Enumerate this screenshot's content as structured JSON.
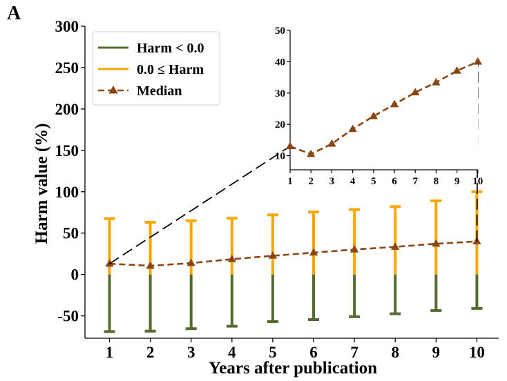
{
  "panel_label": "A",
  "colors": {
    "negative": "#556b2f",
    "positive": "#ffa500",
    "median": "#8b4513",
    "axis": "#000000"
  },
  "chart_data": [
    {
      "type": "errorbar",
      "xlabel": "Years after publication",
      "ylabel": "Harm value (%)",
      "x": [
        1,
        2,
        3,
        4,
        5,
        6,
        7,
        8,
        9,
        10
      ],
      "ylim": [
        -77,
        300
      ],
      "yticks": [
        300,
        250,
        200,
        150,
        100,
        50,
        0,
        -50
      ],
      "ytick_labels": [
        "300",
        "250",
        "200",
        "150",
        "100",
        "50",
        "0",
        "-50"
      ],
      "xtick_labels": [
        "1",
        "2",
        "3",
        "4",
        "5",
        "6",
        "7",
        "8",
        "9",
        "10"
      ],
      "series": [
        {
          "name": "Harm < 0.0",
          "kind": "errorbar-lower",
          "min_values": [
            -69,
            -68.5,
            -65.5,
            -62.5,
            -57,
            -54.5,
            -51,
            -47.5,
            -43.5,
            -41
          ]
        },
        {
          "name": "0.0 ≤ Harm",
          "kind": "errorbar-upper",
          "max_values": [
            67.5,
            63,
            65,
            68,
            72,
            75.5,
            78.5,
            82,
            89,
            100
          ]
        },
        {
          "name": "Median",
          "kind": "line-markers",
          "values": [
            13,
            10.5,
            13.8,
            18.5,
            22.6,
            26.4,
            30.2,
            33.4,
            37.1,
            40
          ]
        }
      ],
      "legend_position": "top-left",
      "grid": false
    },
    {
      "type": "line",
      "role": "inset",
      "x": [
        1,
        2,
        3,
        4,
        5,
        6,
        7,
        8,
        9,
        10
      ],
      "values": [
        13,
        10.5,
        13.8,
        18.5,
        22.6,
        26.4,
        30.2,
        33.4,
        37.1,
        40
      ],
      "ylim": [
        5.5,
        50
      ],
      "yticks": [
        50,
        40,
        30,
        20,
        10
      ],
      "ytick_labels": [
        "50",
        "40",
        "30",
        "20",
        "10"
      ],
      "xtick_labels": [
        "1",
        "2",
        "3",
        "4",
        "5",
        "6",
        "7",
        "8",
        "9",
        "10"
      ],
      "grid": false
    }
  ]
}
